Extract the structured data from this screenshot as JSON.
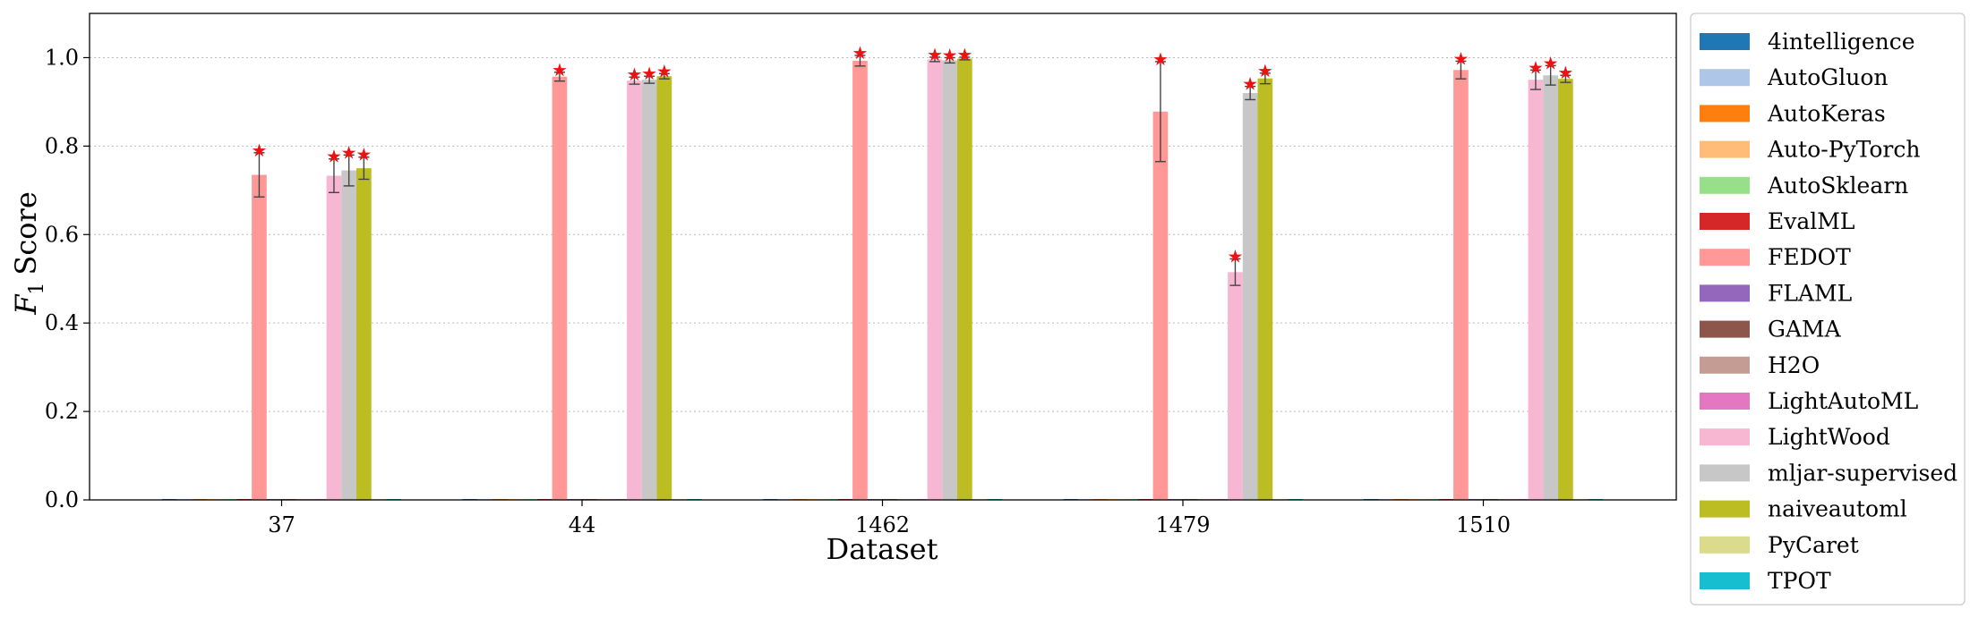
{
  "chart_data": {
    "type": "bar",
    "xlabel": "Dataset",
    "ylabel_main": "F",
    "ylabel_sub": "1",
    "ylabel_rest": "Score",
    "ylim": [
      0,
      1.1
    ],
    "yticks": [
      "0.0",
      "0.2",
      "0.4",
      "0.6",
      "0.8",
      "1.0"
    ],
    "ytick_values": [
      0.0,
      0.2,
      0.4,
      0.6,
      0.8,
      1.0
    ],
    "grid": "horizontal dotted",
    "legend_position": "right-outside",
    "categories": [
      "37",
      "44",
      "1462",
      "1479",
      "1510"
    ],
    "series": [
      {
        "name": "4intelligence",
        "color": "#1f77b4",
        "values": [
          0,
          0,
          0,
          0,
          0
        ],
        "errors": [
          null,
          null,
          null,
          null,
          null
        ],
        "stars": [
          false,
          false,
          false,
          false,
          false
        ]
      },
      {
        "name": "AutoGluon",
        "color": "#aec7e8",
        "values": [
          0,
          0,
          0,
          0,
          0
        ],
        "errors": [
          null,
          null,
          null,
          null,
          null
        ],
        "stars": [
          false,
          false,
          false,
          false,
          false
        ]
      },
      {
        "name": "AutoKeras",
        "color": "#ff7f0e",
        "values": [
          0,
          0,
          0,
          0,
          0
        ],
        "errors": [
          null,
          null,
          null,
          null,
          null
        ],
        "stars": [
          false,
          false,
          false,
          false,
          false
        ]
      },
      {
        "name": "Auto-PyTorch",
        "color": "#ffbb78",
        "values": [
          0,
          0,
          0,
          0,
          0
        ],
        "errors": [
          null,
          null,
          null,
          null,
          null
        ],
        "stars": [
          false,
          false,
          false,
          false,
          false
        ]
      },
      {
        "name": "AutoSklearn",
        "color": "#98df8a",
        "values": [
          0,
          0,
          0,
          0,
          0
        ],
        "errors": [
          null,
          null,
          null,
          null,
          null
        ],
        "stars": [
          false,
          false,
          false,
          false,
          false
        ]
      },
      {
        "name": "EvalML",
        "color": "#d62728",
        "values": [
          0,
          0,
          0,
          0,
          0
        ],
        "errors": [
          null,
          null,
          null,
          null,
          null
        ],
        "stars": [
          false,
          false,
          false,
          false,
          false
        ]
      },
      {
        "name": "FEDOT",
        "color": "#ff9896",
        "values": [
          0.735,
          0.957,
          0.993,
          0.878,
          0.972
        ],
        "errors": [
          0.05,
          0.01,
          0.012,
          0.113,
          0.02
        ],
        "stars": [
          true,
          true,
          true,
          true,
          true
        ]
      },
      {
        "name": "FLAML",
        "color": "#9467bd",
        "values": [
          0,
          0,
          0,
          0,
          0
        ],
        "errors": [
          null,
          null,
          null,
          null,
          null
        ],
        "stars": [
          false,
          false,
          false,
          false,
          false
        ]
      },
      {
        "name": "GAMA",
        "color": "#8c564b",
        "values": [
          0,
          0,
          0,
          0,
          0
        ],
        "errors": [
          null,
          null,
          null,
          null,
          null
        ],
        "stars": [
          false,
          false,
          false,
          false,
          false
        ]
      },
      {
        "name": "H2O",
        "color": "#c49c94",
        "values": [
          0,
          0,
          0,
          0,
          0
        ],
        "errors": [
          null,
          null,
          null,
          null,
          null
        ],
        "stars": [
          false,
          false,
          false,
          false,
          false
        ]
      },
      {
        "name": "LightAutoML",
        "color": "#e377c2",
        "values": [
          0,
          0,
          0,
          0,
          0
        ],
        "errors": [
          null,
          null,
          null,
          null,
          null
        ],
        "stars": [
          false,
          false,
          false,
          false,
          false
        ]
      },
      {
        "name": "LightWood",
        "color": "#f7b6d2",
        "values": [
          0.733,
          0.948,
          0.996,
          0.515,
          0.95
        ],
        "errors": [
          0.038,
          0.008,
          0.005,
          0.03,
          0.022
        ],
        "stars": [
          true,
          true,
          true,
          true,
          true
        ]
      },
      {
        "name": "mljar-supervised",
        "color": "#c7c7c7",
        "values": [
          0.745,
          0.95,
          0.994,
          0.92,
          0.96
        ],
        "errors": [
          0.035,
          0.008,
          0.006,
          0.015,
          0.022
        ],
        "stars": [
          true,
          true,
          true,
          true,
          true
        ]
      },
      {
        "name": "naiveautoml",
        "color": "#bcbd22",
        "values": [
          0.75,
          0.958,
          0.998,
          0.953,
          0.952
        ],
        "errors": [
          0.025,
          0.006,
          0.003,
          0.012,
          0.008
        ],
        "stars": [
          true,
          true,
          true,
          true,
          true
        ]
      },
      {
        "name": "PyCaret",
        "color": "#dbdb8d",
        "values": [
          0,
          0,
          0,
          0,
          0
        ],
        "errors": [
          null,
          null,
          null,
          null,
          null
        ],
        "stars": [
          false,
          false,
          false,
          false,
          false
        ]
      },
      {
        "name": "TPOT",
        "color": "#17becf",
        "values": [
          0,
          0,
          0,
          0,
          0
        ],
        "errors": [
          null,
          null,
          null,
          null,
          null
        ],
        "stars": [
          false,
          false,
          false,
          false,
          false
        ]
      }
    ]
  }
}
